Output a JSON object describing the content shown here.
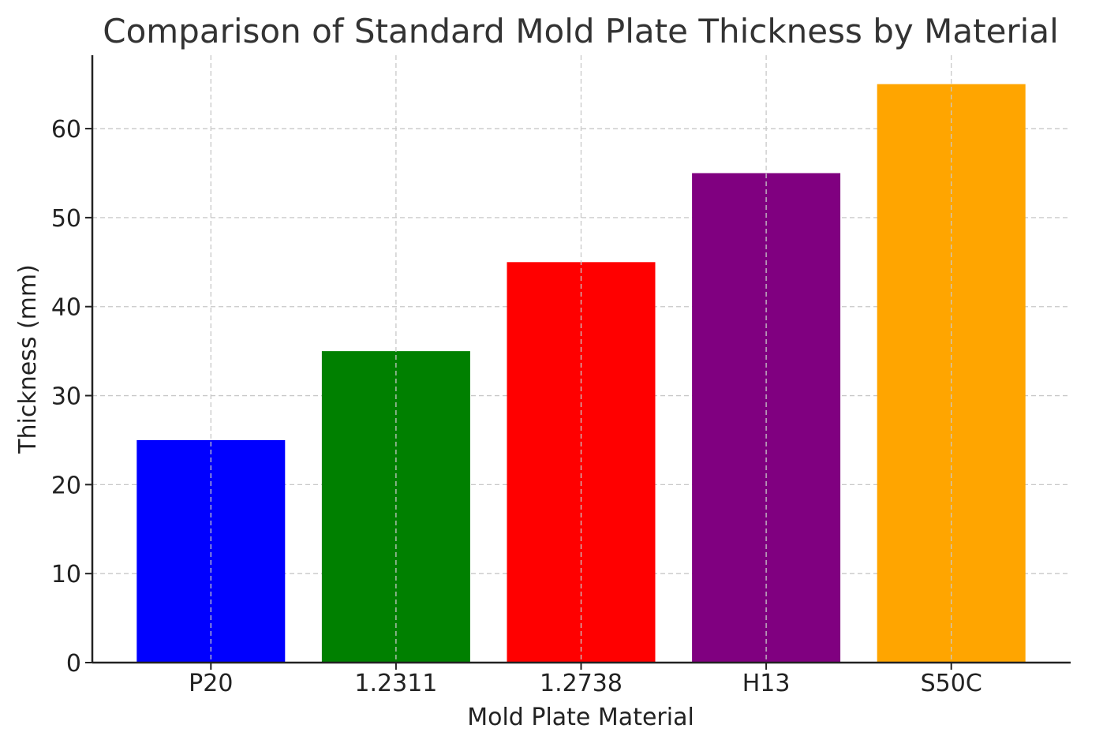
{
  "chart_data": {
    "type": "bar",
    "title": "Comparison of Standard Mold Plate Thickness by Material",
    "xlabel": "Mold Plate Material",
    "ylabel": "Thickness (mm)",
    "categories": [
      "P20",
      "1.2311",
      "1.2738",
      "H13",
      "S50C"
    ],
    "values": [
      25,
      35,
      45,
      55,
      65
    ],
    "colors": [
      "#0000ff",
      "#008000",
      "#ff0000",
      "#800080",
      "#ffa500"
    ],
    "ylim": [
      0,
      68.25
    ],
    "yticks": [
      0,
      10,
      20,
      30,
      40,
      50,
      60
    ],
    "grid": true
  }
}
